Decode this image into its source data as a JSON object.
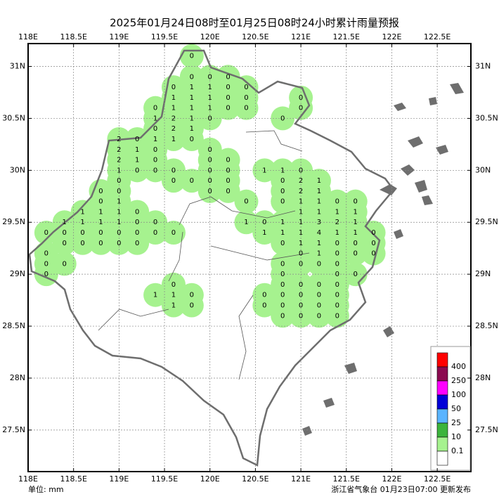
{
  "header": {
    "title": "2025年01月24日08时至01月25日08时24小时累计雨量预报"
  },
  "footer": {
    "unit": "单位: mm",
    "source": "浙江省气象台 01月23日07:00 更新发布"
  },
  "map": {
    "xlim": [
      118,
      122.87
    ],
    "ylim": [
      27.1,
      31.22
    ],
    "xticks": [
      {
        "value": 118,
        "label": "118E"
      },
      {
        "value": 118.5,
        "label": "118.5E"
      },
      {
        "value": 119,
        "label": "119E"
      },
      {
        "value": 119.5,
        "label": "119.5E"
      },
      {
        "value": 120,
        "label": "120E"
      },
      {
        "value": 120.5,
        "label": "120.5E"
      },
      {
        "value": 121,
        "label": "121E"
      },
      {
        "value": 121.5,
        "label": "121.5E"
      },
      {
        "value": 122,
        "label": "122E"
      },
      {
        "value": 122.5,
        "label": "122.5E"
      }
    ],
    "yticks": [
      {
        "value": 27.5,
        "label": "27.5N"
      },
      {
        "value": 28,
        "label": "28N"
      },
      {
        "value": 28.5,
        "label": "28.5N"
      },
      {
        "value": 29,
        "label": "29N"
      },
      {
        "value": 29.5,
        "label": "29.5N"
      },
      {
        "value": 30,
        "label": "30N"
      },
      {
        "value": 30.5,
        "label": "30.5N"
      },
      {
        "value": 31,
        "label": "31N"
      }
    ],
    "grid": true,
    "rain_color": "#a6f28f",
    "points": [
      [
        119.8,
        31.1,
        0
      ],
      [
        119.8,
        30.9,
        0
      ],
      [
        120,
        30.9,
        0
      ],
      [
        120.2,
        30.9,
        0
      ],
      [
        119.6,
        30.8,
        0
      ],
      [
        119.8,
        30.8,
        1
      ],
      [
        120,
        30.8,
        1
      ],
      [
        120.2,
        30.8,
        0
      ],
      [
        120.4,
        30.8,
        0
      ],
      [
        119.6,
        30.7,
        1
      ],
      [
        119.8,
        30.7,
        1
      ],
      [
        120,
        30.7,
        1
      ],
      [
        120.2,
        30.7,
        0
      ],
      [
        120.4,
        30.7,
        0
      ],
      [
        121,
        30.7,
        0
      ],
      [
        119.4,
        30.6,
        0
      ],
      [
        119.6,
        30.6,
        1
      ],
      [
        119.8,
        30.6,
        1
      ],
      [
        120,
        30.6,
        1
      ],
      [
        120.2,
        30.6,
        0
      ],
      [
        120.4,
        30.6,
        0
      ],
      [
        121,
        30.6,
        0
      ],
      [
        119.4,
        30.5,
        1
      ],
      [
        119.6,
        30.5,
        2
      ],
      [
        119.8,
        30.5,
        1
      ],
      [
        120,
        30.5,
        0
      ],
      [
        120.8,
        30.5,
        0
      ],
      [
        119.4,
        30.4,
        0
      ],
      [
        119.6,
        30.4,
        2
      ],
      [
        119.8,
        30.4,
        1
      ],
      [
        119,
        30.3,
        2
      ],
      [
        119.2,
        30.3,
        0
      ],
      [
        119.4,
        30.3,
        1
      ],
      [
        119.6,
        30.3,
        1
      ],
      [
        119.8,
        30.3,
        0
      ],
      [
        119,
        30.2,
        2
      ],
      [
        119.2,
        30.2,
        1
      ],
      [
        119.4,
        30.2,
        0
      ],
      [
        120,
        30.2,
        0
      ],
      [
        119,
        30.1,
        2
      ],
      [
        119.2,
        30.1,
        1
      ],
      [
        119.4,
        30.1,
        0
      ],
      [
        120,
        30.1,
        0
      ],
      [
        120.2,
        30.1,
        0
      ],
      [
        119,
        30,
        1
      ],
      [
        119.2,
        30,
        0
      ],
      [
        119.4,
        30,
        0
      ],
      [
        119.6,
        30,
        0
      ],
      [
        120,
        30,
        0
      ],
      [
        120.2,
        30,
        0
      ],
      [
        120.6,
        30,
        1
      ],
      [
        120.8,
        30,
        1
      ],
      [
        121,
        30,
        0
      ],
      [
        119,
        29.9,
        0
      ],
      [
        119.6,
        29.9,
        0
      ],
      [
        119.8,
        29.9,
        0
      ],
      [
        120,
        29.9,
        0
      ],
      [
        120.2,
        29.9,
        0
      ],
      [
        120.8,
        29.9,
        0
      ],
      [
        121,
        29.9,
        2
      ],
      [
        121.2,
        29.9,
        1
      ],
      [
        118.8,
        29.8,
        0
      ],
      [
        119,
        29.8,
        0
      ],
      [
        120,
        29.8,
        0
      ],
      [
        120.2,
        29.8,
        0
      ],
      [
        120.8,
        29.8,
        0
      ],
      [
        121,
        29.8,
        2
      ],
      [
        121.2,
        29.8,
        1
      ],
      [
        118.8,
        29.7,
        0
      ],
      [
        119,
        29.7,
        1
      ],
      [
        120.4,
        29.7,
        0
      ],
      [
        120.8,
        29.7,
        0
      ],
      [
        121,
        29.7,
        1
      ],
      [
        121.2,
        29.7,
        1
      ],
      [
        121.4,
        29.7,
        0
      ],
      [
        121.6,
        29.7,
        0
      ],
      [
        118.6,
        29.6,
        1
      ],
      [
        118.8,
        29.6,
        1
      ],
      [
        119,
        29.6,
        1
      ],
      [
        119.2,
        29.6,
        0
      ],
      [
        121,
        29.6,
        1
      ],
      [
        121.2,
        29.6,
        1
      ],
      [
        121.4,
        29.6,
        1
      ],
      [
        121.6,
        29.6,
        1
      ],
      [
        118.4,
        29.5,
        1
      ],
      [
        118.6,
        29.5,
        1
      ],
      [
        118.8,
        29.5,
        1
      ],
      [
        119,
        29.5,
        1
      ],
      [
        119.2,
        29.5,
        0
      ],
      [
        119.4,
        29.5,
        0
      ],
      [
        120.4,
        29.5,
        1
      ],
      [
        120.6,
        29.5,
        0
      ],
      [
        120.8,
        29.5,
        1
      ],
      [
        121,
        29.5,
        1
      ],
      [
        121.2,
        29.5,
        3
      ],
      [
        121.4,
        29.5,
        2
      ],
      [
        121.6,
        29.5,
        1
      ],
      [
        118.2,
        29.4,
        0
      ],
      [
        118.4,
        29.4,
        0
      ],
      [
        118.6,
        29.4,
        0
      ],
      [
        118.8,
        29.4,
        0
      ],
      [
        119,
        29.4,
        0
      ],
      [
        119.2,
        29.4,
        0
      ],
      [
        119.4,
        29.4,
        0
      ],
      [
        119.6,
        29.4,
        0
      ],
      [
        120.6,
        29.4,
        1
      ],
      [
        120.8,
        29.4,
        1
      ],
      [
        121,
        29.4,
        1
      ],
      [
        121.2,
        29.4,
        4
      ],
      [
        121.4,
        29.4,
        1
      ],
      [
        121.6,
        29.4,
        1
      ],
      [
        121.8,
        29.4,
        0
      ],
      [
        118.4,
        29.3,
        0
      ],
      [
        118.6,
        29.3,
        0
      ],
      [
        118.8,
        29.3,
        0
      ],
      [
        119,
        29.3,
        0
      ],
      [
        119.2,
        29.3,
        0
      ],
      [
        120.8,
        29.3,
        0
      ],
      [
        121,
        29.3,
        1
      ],
      [
        121.2,
        29.3,
        1
      ],
      [
        121.4,
        29.3,
        0
      ],
      [
        121.6,
        29.3,
        0
      ],
      [
        121.8,
        29.3,
        0
      ],
      [
        118.2,
        29.2,
        0
      ],
      [
        121,
        29.2,
        0
      ],
      [
        121.2,
        29.2,
        1
      ],
      [
        121.4,
        29.2,
        0
      ],
      [
        121.6,
        29.2,
        0
      ],
      [
        121.8,
        29.2,
        0
      ],
      [
        118.2,
        29.1,
        0
      ],
      [
        118.4,
        29.1,
        0
      ],
      [
        120.8,
        29.1,
        0
      ],
      [
        121,
        29.1,
        0
      ],
      [
        121.2,
        29.1,
        0
      ],
      [
        121.4,
        29.1,
        0
      ],
      [
        118.2,
        29,
        0
      ],
      [
        120.8,
        29,
        0
      ],
      [
        121.4,
        29,
        0
      ],
      [
        121.6,
        29,
        0
      ],
      [
        119.6,
        28.9,
        0
      ],
      [
        120.8,
        28.9,
        0
      ],
      [
        121,
        28.9,
        0
      ],
      [
        121.2,
        28.9,
        0
      ],
      [
        121.4,
        28.9,
        0
      ],
      [
        119.4,
        28.8,
        1
      ],
      [
        119.6,
        28.8,
        1
      ],
      [
        119.8,
        28.8,
        0
      ],
      [
        120.6,
        28.8,
        0
      ],
      [
        120.8,
        28.8,
        0
      ],
      [
        121,
        28.8,
        0
      ],
      [
        121.2,
        28.8,
        0
      ],
      [
        121.4,
        28.8,
        0
      ],
      [
        119.6,
        28.7,
        1
      ],
      [
        119.8,
        28.7,
        0
      ],
      [
        120.6,
        28.7,
        0
      ],
      [
        120.8,
        28.7,
        0
      ],
      [
        121,
        28.7,
        0
      ],
      [
        121.2,
        28.7,
        0
      ],
      [
        121.4,
        28.7,
        0
      ],
      [
        120.8,
        28.6,
        0
      ],
      [
        121,
        28.6,
        0
      ],
      [
        121.2,
        28.6,
        0
      ],
      [
        121.4,
        28.6,
        0
      ]
    ]
  },
  "legend": {
    "colors": [
      "#ff0000",
      "#8b0a50",
      "#ff00ff",
      "#0000d8",
      "#5ab4ff",
      "#3cb43c",
      "#a6f28f",
      "#ffffff"
    ],
    "labels": [
      "400",
      "250",
      "100",
      "50",
      "25",
      "10",
      "0.1"
    ]
  }
}
